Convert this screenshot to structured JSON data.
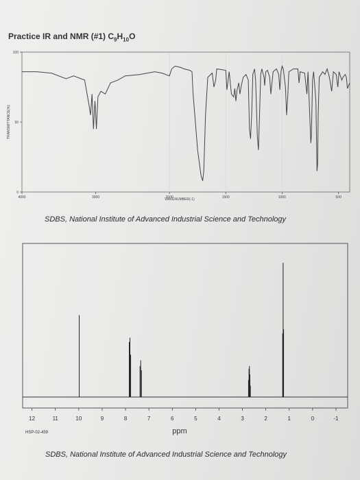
{
  "page": {
    "title_main": "Practice IR and NMR (#1) C",
    "formula_sub1": "9",
    "formula_h": "H",
    "formula_sub2": "10",
    "formula_o": "O"
  },
  "chart_data": [
    {
      "type": "line",
      "name": "ir",
      "caption": "SDBS, National Institute of Advanced Industrial Science and Technology",
      "xlabel": "WAVENUMBER(-1)",
      "ylabel": "TRANSMITTANCE(%)",
      "x_ticks": [
        "4000",
        "3000",
        "2000",
        "1500",
        "1000",
        "500"
      ],
      "y_ticks": [
        "100",
        "50",
        "0"
      ],
      "xlim": [
        4000,
        400
      ],
      "ylim": [
        0,
        100
      ],
      "x_reversed": true,
      "x_split_at": 2000,
      "grid": false,
      "series": [
        {
          "points": [
            [
              4000,
              86
            ],
            [
              3800,
              86
            ],
            [
              3600,
              85
            ],
            [
              3400,
              81
            ],
            [
              3350,
              82
            ],
            [
              3300,
              83
            ],
            [
              3150,
              80
            ],
            [
              3090,
              62
            ],
            [
              3070,
              55
            ],
            [
              3050,
              70
            ],
            [
              3030,
              45
            ],
            [
              3010,
              65
            ],
            [
              2990,
              45
            ],
            [
              2970,
              68
            ],
            [
              2930,
              72
            ],
            [
              2870,
              70
            ],
            [
              2800,
              78
            ],
            [
              2700,
              80
            ],
            [
              2600,
              83
            ],
            [
              2400,
              84
            ],
            [
              2200,
              86
            ],
            [
              2100,
              85
            ],
            [
              2000,
              83
            ],
            [
              1980,
              88
            ],
            [
              1950,
              90
            ],
            [
              1900,
              89
            ],
            [
              1870,
              88
            ],
            [
              1820,
              87
            ],
            [
              1800,
              86
            ],
            [
              1790,
              70
            ],
            [
              1750,
              30
            ],
            [
              1720,
              12
            ],
            [
              1705,
              8
            ],
            [
              1695,
              15
            ],
            [
              1680,
              55
            ],
            [
              1660,
              82
            ],
            [
              1620,
              85
            ],
            [
              1605,
              75
            ],
            [
              1590,
              80
            ],
            [
              1580,
              88
            ],
            [
              1500,
              87
            ],
            [
              1490,
              73
            ],
            [
              1470,
              86
            ],
            [
              1450,
              70
            ],
            [
              1430,
              68
            ],
            [
              1420,
              74
            ],
            [
              1410,
              65
            ],
            [
              1400,
              73
            ],
            [
              1385,
              78
            ],
            [
              1375,
              70
            ],
            [
              1360,
              77
            ],
            [
              1345,
              82
            ],
            [
              1320,
              84
            ],
            [
              1300,
              80
            ],
            [
              1290,
              45
            ],
            [
              1280,
              38
            ],
            [
              1270,
              55
            ],
            [
              1260,
              84
            ],
            [
              1245,
              88
            ],
            [
              1235,
              80
            ],
            [
              1220,
              40
            ],
            [
              1210,
              30
            ],
            [
              1200,
              55
            ],
            [
              1190,
              84
            ],
            [
              1180,
              88
            ],
            [
              1160,
              82
            ],
            [
              1155,
              76
            ],
            [
              1145,
              86
            ],
            [
              1130,
              87
            ],
            [
              1110,
              82
            ],
            [
              1100,
              70
            ],
            [
              1080,
              86
            ],
            [
              1050,
              88
            ],
            [
              1030,
              84
            ],
            [
              1020,
              73
            ],
            [
              1010,
              86
            ],
            [
              1000,
              90
            ],
            [
              990,
              88
            ],
            [
              970,
              75
            ],
            [
              960,
              55
            ],
            [
              950,
              68
            ],
            [
              940,
              86
            ],
            [
              900,
              88
            ],
            [
              860,
              88
            ],
            [
              850,
              78
            ],
            [
              840,
              86
            ],
            [
              800,
              85
            ],
            [
              780,
              70
            ],
            [
              770,
              86
            ],
            [
              750,
              45
            ],
            [
              745,
              35
            ],
            [
              740,
              40
            ],
            [
              730,
              80
            ],
            [
              720,
              86
            ],
            [
              700,
              65
            ],
            [
              690,
              15
            ],
            [
              685,
              20
            ],
            [
              680,
              55
            ],
            [
              670,
              82
            ],
            [
              640,
              86
            ],
            [
              620,
              84
            ],
            [
              600,
              88
            ],
            [
              580,
              82
            ],
            [
              560,
              72
            ],
            [
              545,
              86
            ],
            [
              520,
              84
            ],
            [
              505,
              75
            ],
            [
              495,
              86
            ],
            [
              470,
              80
            ],
            [
              460,
              82
            ],
            [
              440,
              84
            ],
            [
              430,
              82
            ],
            [
              420,
              74
            ],
            [
              400,
              78
            ]
          ]
        }
      ]
    },
    {
      "type": "line",
      "name": "nmr",
      "caption": "SDBS, National Institute of Advanced Industrial Science and Technology",
      "xlabel": "ppm",
      "code": "HSP-02-459",
      "x_ticks": [
        "12",
        "11",
        "10",
        "9",
        "8",
        "7",
        "6",
        "5",
        "4",
        "3",
        "2",
        "1",
        "0",
        "-1"
      ],
      "xlim": [
        12.4,
        -1.5
      ],
      "x_reversed": true,
      "grid": false,
      "peaks": [
        {
          "ppm": 9.98,
          "height": 0.58
        },
        {
          "ppm": 7.84,
          "height": 0.39
        },
        {
          "ppm": 7.81,
          "height": 0.42
        },
        {
          "ppm": 7.78,
          "height": 0.3
        },
        {
          "ppm": 7.38,
          "height": 0.22
        },
        {
          "ppm": 7.35,
          "height": 0.26
        },
        {
          "ppm": 7.32,
          "height": 0.19
        },
        {
          "ppm": 2.74,
          "height": 0.12
        },
        {
          "ppm": 2.72,
          "height": 0.2
        },
        {
          "ppm": 2.7,
          "height": 0.22
        },
        {
          "ppm": 2.68,
          "height": 0.16
        },
        {
          "ppm": 2.66,
          "height": 0.08
        },
        {
          "ppm": 1.28,
          "height": 0.45
        },
        {
          "ppm": 1.26,
          "height": 0.95
        },
        {
          "ppm": 1.24,
          "height": 0.48
        }
      ]
    }
  ]
}
